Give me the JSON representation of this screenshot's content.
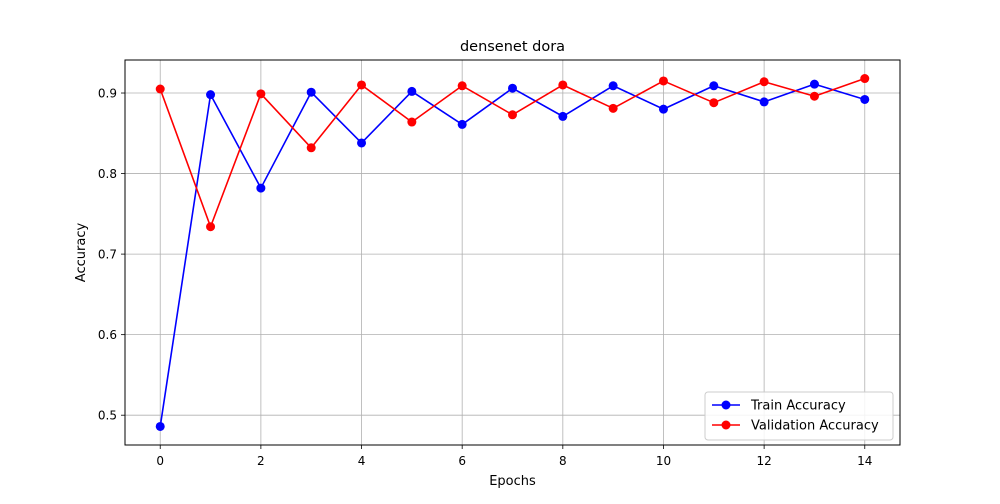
{
  "chart_data": {
    "type": "line",
    "title": "densenet dora",
    "xlabel": "Epochs",
    "ylabel": "Accuracy",
    "x": [
      0,
      1,
      2,
      3,
      4,
      5,
      6,
      7,
      8,
      9,
      10,
      11,
      12,
      13,
      14
    ],
    "xlim": [
      -0.7,
      14.7
    ],
    "ylim": [
      0.463,
      0.941
    ],
    "xticks": [
      0,
      2,
      4,
      6,
      8,
      10,
      12,
      14
    ],
    "yticks": [
      0.5,
      0.6,
      0.7,
      0.8,
      0.9
    ],
    "ytick_labels": [
      "0.5",
      "0.6",
      "0.7",
      "0.8",
      "0.9"
    ],
    "grid": true,
    "legend_position": "lower-right",
    "series": [
      {
        "name": "Train Accuracy",
        "color": "#0000ff",
        "marker": "circle",
        "values": [
          0.486,
          0.898,
          0.782,
          0.901,
          0.838,
          0.902,
          0.861,
          0.906,
          0.871,
          0.909,
          0.88,
          0.909,
          0.889,
          0.911,
          0.892
        ]
      },
      {
        "name": "Validation Accuracy",
        "color": "#ff0000",
        "marker": "circle",
        "values": [
          0.905,
          0.734,
          0.899,
          0.832,
          0.91,
          0.864,
          0.909,
          0.873,
          0.91,
          0.881,
          0.915,
          0.888,
          0.914,
          0.896,
          0.918
        ]
      }
    ]
  }
}
